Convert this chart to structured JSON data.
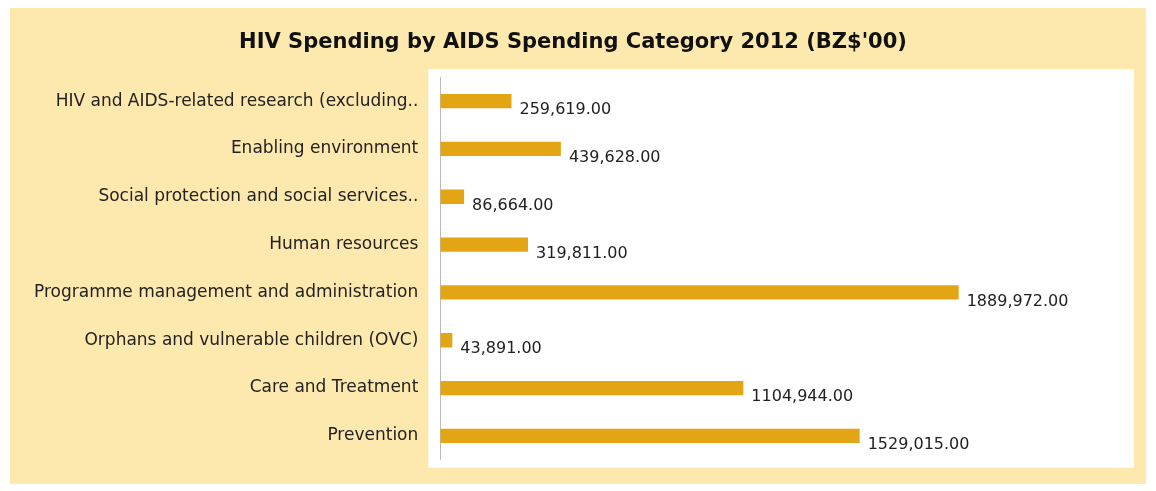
{
  "chart_data": {
    "type": "bar",
    "orientation": "horizontal",
    "title": "HIV Spending by AIDS Spending Category 2012 (BZ$'00)",
    "categories": [
      "HIV and AIDS-related research (excluding..",
      "Enabling environment",
      "Social protection and social services..",
      "Human resources",
      "Programme management and administration",
      "Orphans and vulnerable children (OVC)",
      "Care and Treatment",
      "Prevention"
    ],
    "values": [
      259619,
      439628,
      86664,
      319811,
      1889972,
      43891,
      1104944,
      1529015
    ],
    "value_labels": [
      "259,619.00",
      "439,628.00",
      "86,664.00",
      "319,811.00",
      "1889,972.00",
      "43,891.00",
      "1104,944.00",
      "1529,015.00"
    ],
    "color": "#e3a514",
    "legend": false
  }
}
